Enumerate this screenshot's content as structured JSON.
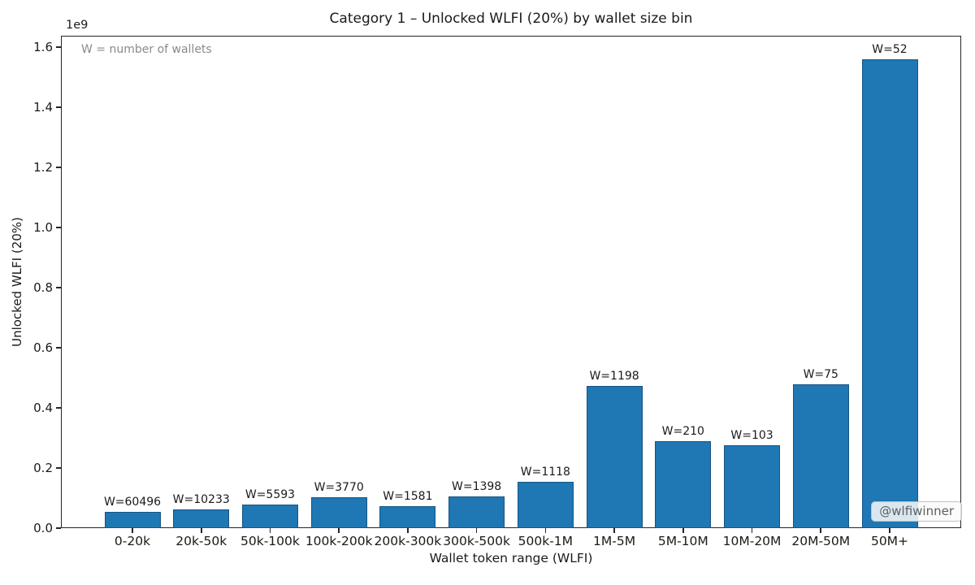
{
  "chart_data": {
    "type": "bar",
    "title": "Category 1 – Unlocked WLFI (20%) by wallet size bin",
    "xlabel": "Wallet token range (WLFI)",
    "ylabel": "Unlocked WLFI (20%)",
    "y_offset_text": "1e9",
    "y_unit": "1e9",
    "annotation": "W = number of wallets",
    "watermark": "@wlfiwinner",
    "categories": [
      "0-20k",
      "20k-50k",
      "50k-100k",
      "100k-200k",
      "200k-300k",
      "300k-500k",
      "500k-1M",
      "1M-5M",
      "5M-10M",
      "10M-20M",
      "20M-50M",
      "50M+"
    ],
    "values": [
      0.055,
      0.062,
      0.078,
      0.103,
      0.073,
      0.105,
      0.154,
      0.473,
      0.289,
      0.276,
      0.478,
      1.56
    ],
    "wallet_counts": [
      60496,
      10233,
      5593,
      3770,
      1581,
      1398,
      1118,
      1198,
      210,
      103,
      75,
      52
    ],
    "bar_labels": [
      "W=60496",
      "W=10233",
      "W=5593",
      "W=3770",
      "W=1581",
      "W=1398",
      "W=1118",
      "W=1198",
      "W=210",
      "W=103",
      "W=75",
      "W=52"
    ],
    "yticks": [
      "0.0",
      "0.2",
      "0.4",
      "0.6",
      "0.8",
      "1.0",
      "1.2",
      "1.4",
      "1.6"
    ],
    "ylim": [
      0,
      1.638
    ],
    "grid": false,
    "legend": false,
    "bar_color": "#1f77b4"
  }
}
